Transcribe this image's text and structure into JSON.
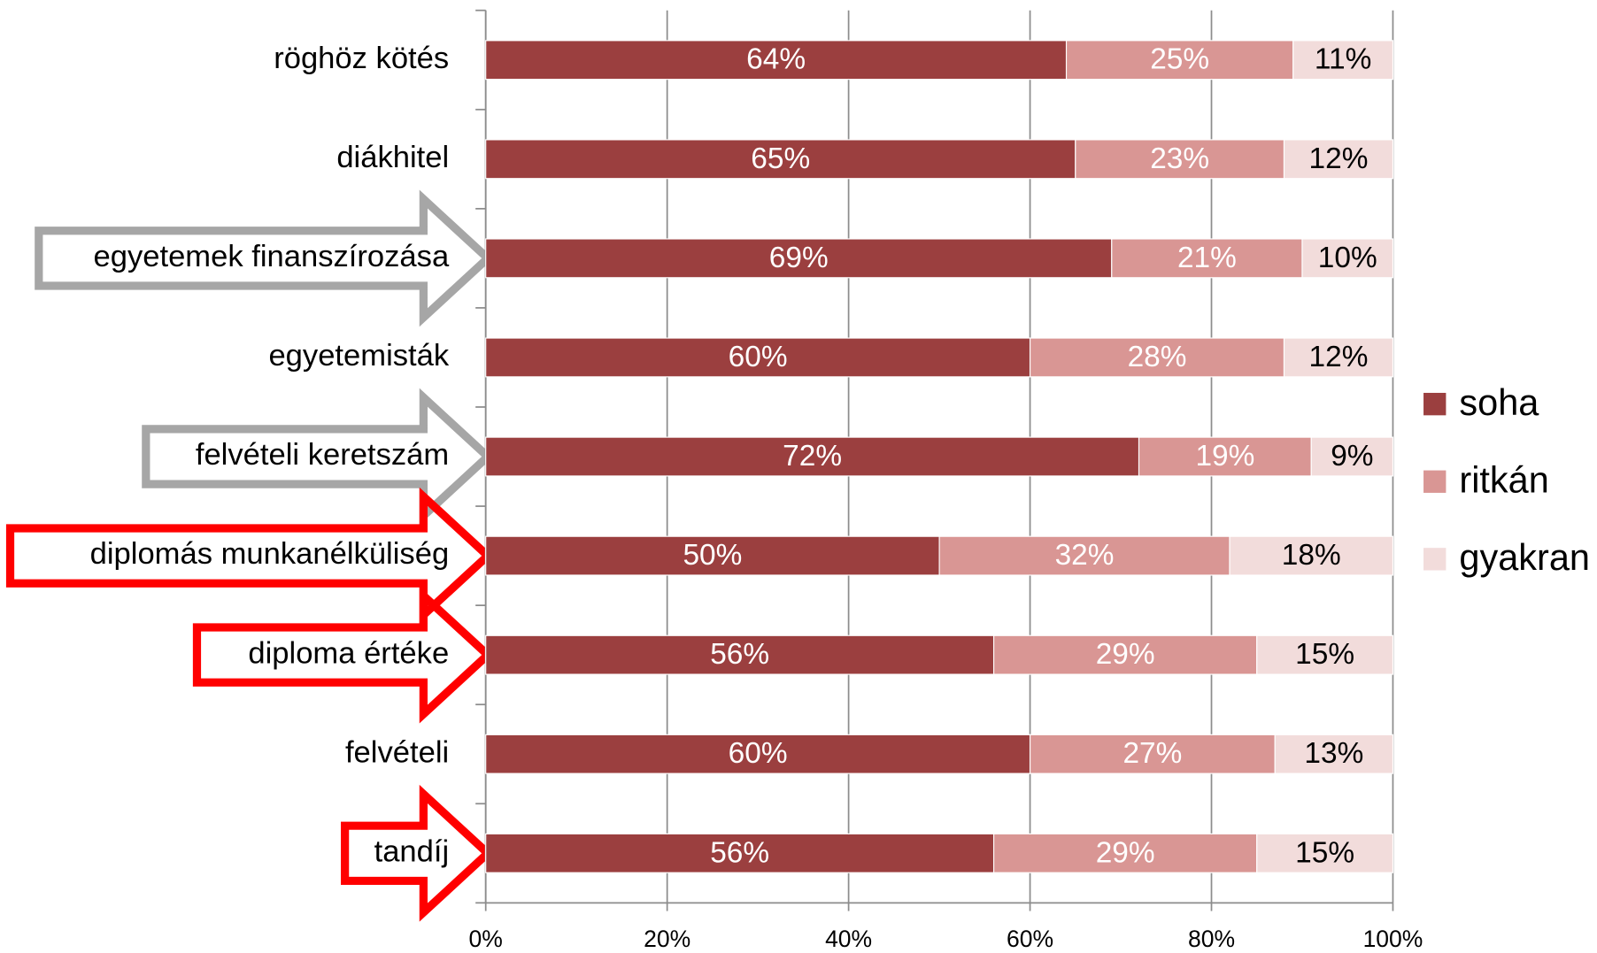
{
  "chart_data": {
    "type": "stacked-bar-horizontal",
    "categories": [
      "röghöz kötés",
      "diákhitel",
      "egyetemek finanszírozása",
      "egyetemisták",
      "felvételi keretszám",
      "diplomás munkanélküliség",
      "diploma értéke",
      "felvételi",
      "tandíj"
    ],
    "series": [
      {
        "name": "soha",
        "color": "#9b3f3f",
        "label_color": "#ffffff",
        "values": [
          64,
          65,
          69,
          60,
          72,
          50,
          56,
          60,
          56
        ],
        "value_labels": [
          "64%",
          "65%",
          "69%",
          "60%",
          "72%",
          "50%",
          "56%",
          "60%",
          "56%"
        ]
      },
      {
        "name": "ritkán",
        "color": "#d99694",
        "label_color": "#ffffff",
        "values": [
          25,
          23,
          21,
          28,
          19,
          32,
          29,
          27,
          29
        ],
        "value_labels": [
          "25%",
          "23%",
          "21%",
          "28%",
          "19%",
          "32%",
          "29%",
          "27%",
          "29%"
        ]
      },
      {
        "name": "gyakran",
        "color": "#f2dcdb",
        "label_color": "#000000",
        "values": [
          11,
          12,
          10,
          12,
          9,
          18,
          15,
          13,
          15
        ],
        "value_labels": [
          "11%",
          "12%",
          "10%",
          "12%",
          "9%",
          "18%",
          "15%",
          "13%",
          "15%"
        ]
      }
    ],
    "xlim": [
      0,
      100
    ],
    "xticks": [
      {
        "value": 0,
        "label": "0%"
      },
      {
        "value": 20,
        "label": "20%"
      },
      {
        "value": 40,
        "label": "40%"
      },
      {
        "value": 60,
        "label": "60%"
      },
      {
        "value": 80,
        "label": "80%"
      },
      {
        "value": 100,
        "label": "100%"
      }
    ],
    "grid": true,
    "legend": "right"
  }
}
